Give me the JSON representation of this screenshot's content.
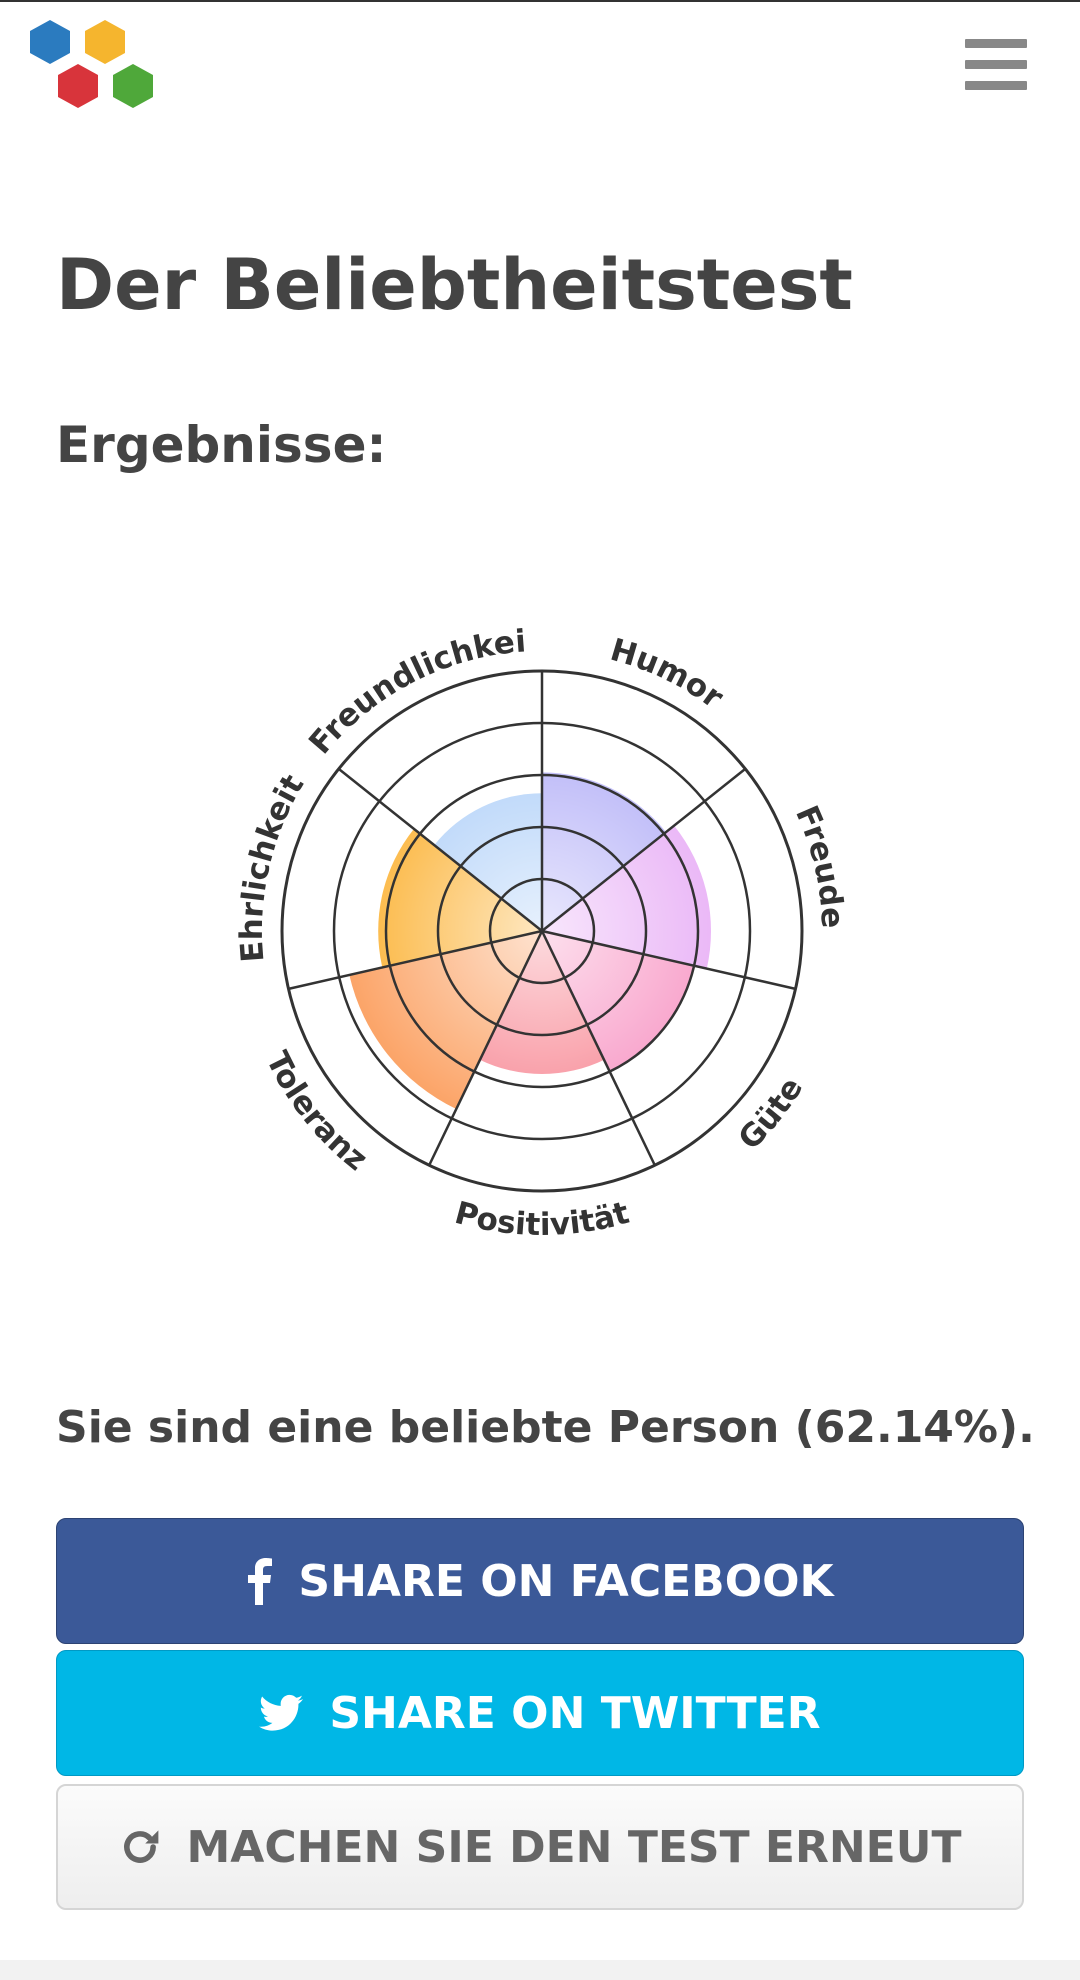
{
  "header": {
    "logo_icon": "colored-hexagons-logo",
    "menu_icon": "hamburger-menu-icon"
  },
  "main": {
    "title": "Der Beliebtheitstest",
    "section_heading": "Ergebnisse:",
    "result_text": "Sie sind eine beliebte Person (62.14%)."
  },
  "chart_data": {
    "type": "polar-area",
    "categories": [
      "Humor",
      "Freude",
      "Güte",
      "Positivität",
      "Toleranz",
      "Ehrlichkeit",
      "Freundlichkeit"
    ],
    "values": [
      3.05,
      3.25,
      3.0,
      2.75,
      3.8,
      3.15,
      2.65
    ],
    "rlim": [
      0,
      5
    ],
    "rings": 5,
    "colors": [
      "#b1adf7",
      "#e6a8f5",
      "#f78fc0",
      "#f77f8c",
      "#fb9a57",
      "#fbab22",
      "#a9ccf8"
    ]
  },
  "buttons": {
    "facebook": {
      "label": "SHARE ON FACEBOOK",
      "icon": "facebook-icon",
      "color": "#3b5998"
    },
    "twitter": {
      "label": "SHARE ON TWITTER",
      "icon": "twitter-bird-icon",
      "color": "#00b7e6"
    },
    "retry": {
      "label": "MACHEN SIE DEN TEST ERNEUT",
      "icon": "refresh-icon"
    }
  }
}
